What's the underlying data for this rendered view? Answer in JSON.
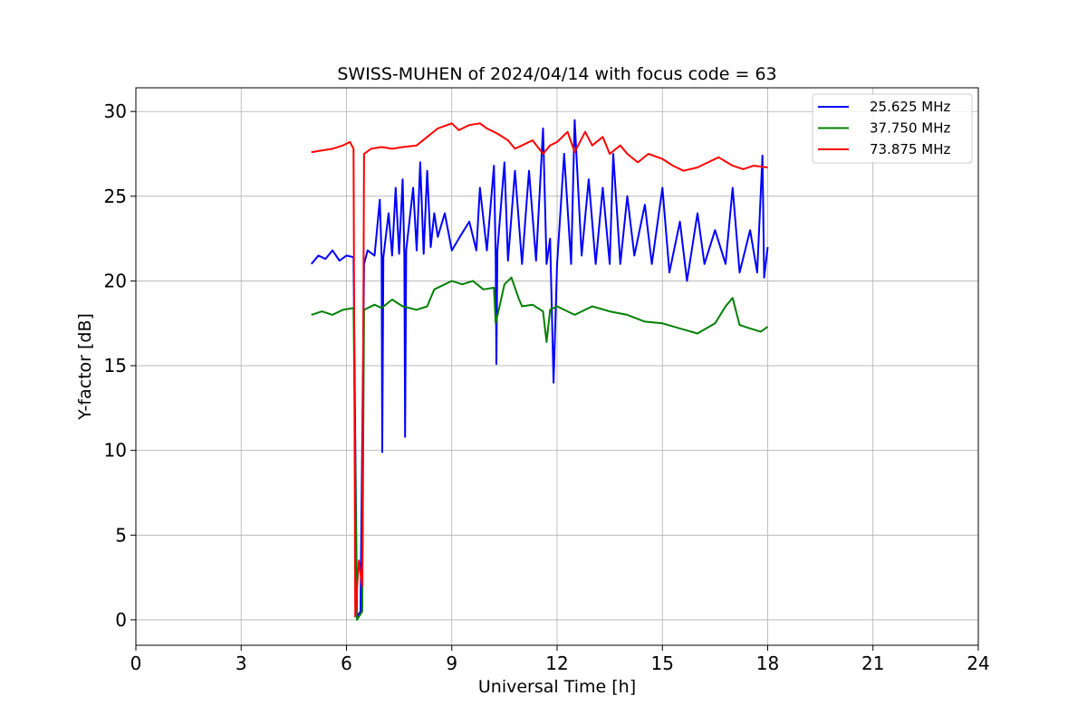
{
  "chart_data": {
    "type": "line",
    "title": "SWISS-MUHEN of 2024/04/14 with focus code = 63",
    "xlabel": "Universal Time [h]",
    "ylabel": "Y-factor [dB]",
    "xlim": [
      0,
      24
    ],
    "ylim": [
      -1.5,
      31.4
    ],
    "xticks": [
      0,
      3,
      6,
      9,
      12,
      15,
      18,
      21,
      24
    ],
    "yticks": [
      0,
      5,
      10,
      15,
      20,
      25,
      30
    ],
    "grid": true,
    "legend_position": "top-right",
    "series": [
      {
        "name": "25.625 MHz",
        "color": "#0000ff",
        "points": [
          [
            5.0,
            21.0
          ],
          [
            5.2,
            21.5
          ],
          [
            5.4,
            21.3
          ],
          [
            5.6,
            21.8
          ],
          [
            5.8,
            21.2
          ],
          [
            6.0,
            21.5
          ],
          [
            6.2,
            21.4
          ],
          [
            6.3,
            0.2
          ],
          [
            6.4,
            0.5
          ],
          [
            6.5,
            21.0
          ],
          [
            6.6,
            21.8
          ],
          [
            6.8,
            21.5
          ],
          [
            6.95,
            24.8
          ],
          [
            7.0,
            21.4
          ],
          [
            7.02,
            9.9
          ],
          [
            7.05,
            21.4
          ],
          [
            7.2,
            24.0
          ],
          [
            7.3,
            21.5
          ],
          [
            7.4,
            25.5
          ],
          [
            7.5,
            21.6
          ],
          [
            7.6,
            26.0
          ],
          [
            7.65,
            21.5
          ],
          [
            7.67,
            10.8
          ],
          [
            7.7,
            21.8
          ],
          [
            7.9,
            25.5
          ],
          [
            8.0,
            21.8
          ],
          [
            8.1,
            27.0
          ],
          [
            8.2,
            21.6
          ],
          [
            8.3,
            26.5
          ],
          [
            8.4,
            22.0
          ],
          [
            8.5,
            24.0
          ],
          [
            8.6,
            22.6
          ],
          [
            8.8,
            24.0
          ],
          [
            9.0,
            21.8
          ],
          [
            9.2,
            22.5
          ],
          [
            9.5,
            23.5
          ],
          [
            9.7,
            21.8
          ],
          [
            9.8,
            25.5
          ],
          [
            10.0,
            21.8
          ],
          [
            10.2,
            26.8
          ],
          [
            10.25,
            21.5
          ],
          [
            10.27,
            15.1
          ],
          [
            10.3,
            21.8
          ],
          [
            10.5,
            27.0
          ],
          [
            10.6,
            21.2
          ],
          [
            10.8,
            26.5
          ],
          [
            11.0,
            21.0
          ],
          [
            11.2,
            26.5
          ],
          [
            11.4,
            21.2
          ],
          [
            11.6,
            29.0
          ],
          [
            11.7,
            21.0
          ],
          [
            11.8,
            22.5
          ],
          [
            11.9,
            14.0
          ],
          [
            12.0,
            21.0
          ],
          [
            12.2,
            27.5
          ],
          [
            12.4,
            21.0
          ],
          [
            12.5,
            29.5
          ],
          [
            12.7,
            21.5
          ],
          [
            12.9,
            26.0
          ],
          [
            13.1,
            21.0
          ],
          [
            13.3,
            25.5
          ],
          [
            13.5,
            21.0
          ],
          [
            13.6,
            27.5
          ],
          [
            13.8,
            21.0
          ],
          [
            14.0,
            25.0
          ],
          [
            14.2,
            21.5
          ],
          [
            14.5,
            24.5
          ],
          [
            14.7,
            21.0
          ],
          [
            15.0,
            25.5
          ],
          [
            15.2,
            20.5
          ],
          [
            15.5,
            23.5
          ],
          [
            15.7,
            20.0
          ],
          [
            16.0,
            24.0
          ],
          [
            16.2,
            21.0
          ],
          [
            16.5,
            23.0
          ],
          [
            16.8,
            21.0
          ],
          [
            17.0,
            25.5
          ],
          [
            17.2,
            20.5
          ],
          [
            17.5,
            23.0
          ],
          [
            17.7,
            20.5
          ],
          [
            17.85,
            27.4
          ],
          [
            17.9,
            20.2
          ],
          [
            18.0,
            22.0
          ]
        ]
      },
      {
        "name": "37.750 MHz",
        "color": "#008000",
        "points": [
          [
            5.0,
            18.0
          ],
          [
            5.3,
            18.2
          ],
          [
            5.6,
            18.0
          ],
          [
            5.9,
            18.3
          ],
          [
            6.2,
            18.4
          ],
          [
            6.3,
            0.0
          ],
          [
            6.45,
            0.5
          ],
          [
            6.5,
            18.3
          ],
          [
            6.8,
            18.6
          ],
          [
            7.0,
            18.4
          ],
          [
            7.3,
            18.9
          ],
          [
            7.6,
            18.5
          ],
          [
            8.0,
            18.3
          ],
          [
            8.3,
            18.5
          ],
          [
            8.5,
            19.5
          ],
          [
            8.8,
            19.8
          ],
          [
            9.0,
            20.0
          ],
          [
            9.3,
            19.8
          ],
          [
            9.6,
            20.0
          ],
          [
            9.9,
            19.5
          ],
          [
            10.2,
            19.6
          ],
          [
            10.25,
            17.5
          ],
          [
            10.5,
            19.8
          ],
          [
            10.7,
            20.2
          ],
          [
            10.9,
            19.0
          ],
          [
            11.0,
            18.5
          ],
          [
            11.3,
            18.6
          ],
          [
            11.6,
            18.2
          ],
          [
            11.7,
            16.4
          ],
          [
            11.8,
            18.3
          ],
          [
            12.0,
            18.5
          ],
          [
            12.5,
            18.0
          ],
          [
            13.0,
            18.5
          ],
          [
            13.5,
            18.2
          ],
          [
            14.0,
            18.0
          ],
          [
            14.5,
            17.6
          ],
          [
            15.0,
            17.5
          ],
          [
            15.5,
            17.2
          ],
          [
            16.0,
            16.9
          ],
          [
            16.5,
            17.5
          ],
          [
            16.8,
            18.5
          ],
          [
            17.0,
            19.0
          ],
          [
            17.2,
            17.4
          ],
          [
            17.5,
            17.2
          ],
          [
            17.8,
            17.0
          ],
          [
            18.0,
            17.3
          ]
        ]
      },
      {
        "name": "73.875 MHz",
        "color": "#ff0000",
        "points": [
          [
            5.0,
            27.6
          ],
          [
            5.3,
            27.7
          ],
          [
            5.6,
            27.8
          ],
          [
            5.9,
            28.0
          ],
          [
            6.1,
            28.2
          ],
          [
            6.2,
            27.8
          ],
          [
            6.25,
            0.2
          ],
          [
            6.35,
            3.5
          ],
          [
            6.45,
            2.0
          ],
          [
            6.5,
            27.5
          ],
          [
            6.7,
            27.8
          ],
          [
            7.0,
            27.9
          ],
          [
            7.3,
            27.8
          ],
          [
            7.6,
            27.9
          ],
          [
            8.0,
            28.0
          ],
          [
            8.3,
            28.5
          ],
          [
            8.6,
            29.0
          ],
          [
            9.0,
            29.3
          ],
          [
            9.2,
            28.9
          ],
          [
            9.5,
            29.2
          ],
          [
            9.8,
            29.3
          ],
          [
            10.0,
            29.0
          ],
          [
            10.3,
            28.7
          ],
          [
            10.6,
            28.3
          ],
          [
            10.8,
            27.8
          ],
          [
            11.0,
            28.0
          ],
          [
            11.3,
            28.3
          ],
          [
            11.6,
            27.5
          ],
          [
            11.8,
            28.0
          ],
          [
            12.0,
            28.2
          ],
          [
            12.3,
            28.8
          ],
          [
            12.5,
            27.6
          ],
          [
            12.8,
            28.8
          ],
          [
            13.0,
            28.0
          ],
          [
            13.3,
            28.5
          ],
          [
            13.5,
            27.5
          ],
          [
            13.8,
            28.0
          ],
          [
            14.0,
            27.5
          ],
          [
            14.3,
            27.0
          ],
          [
            14.6,
            27.5
          ],
          [
            15.0,
            27.2
          ],
          [
            15.3,
            26.8
          ],
          [
            15.6,
            26.5
          ],
          [
            16.0,
            26.7
          ],
          [
            16.3,
            27.0
          ],
          [
            16.6,
            27.3
          ],
          [
            17.0,
            26.8
          ],
          [
            17.3,
            26.6
          ],
          [
            17.6,
            26.8
          ],
          [
            18.0,
            26.7
          ]
        ]
      }
    ]
  }
}
